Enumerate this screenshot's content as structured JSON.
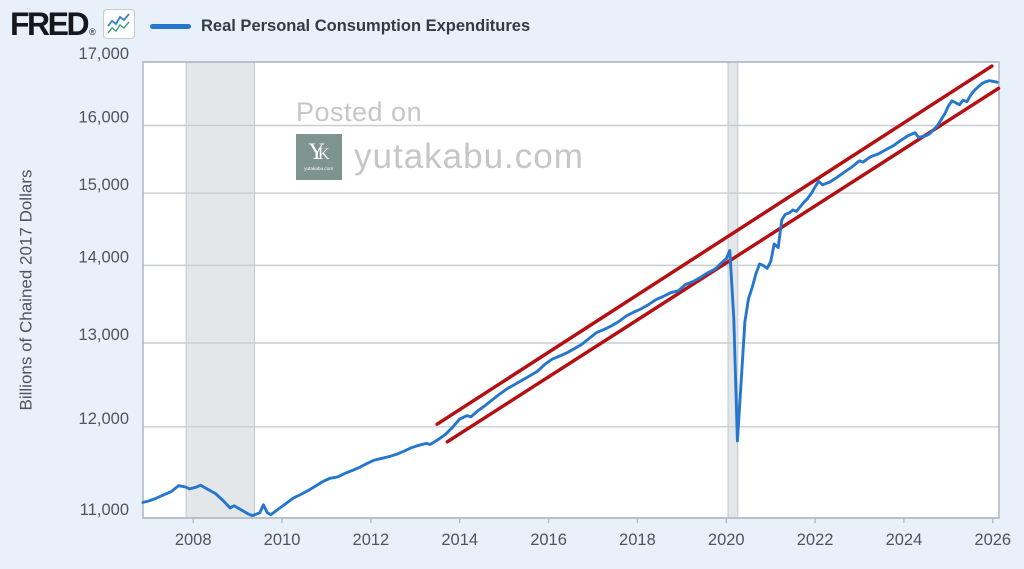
{
  "header": {
    "brand": "FRED",
    "brand_registered": "®",
    "legend_label": "Real Personal Consumption Expenditures"
  },
  "watermark": {
    "posted_on": "Posted on",
    "site": "yutakabu.com",
    "icon_monogram_y": "Y",
    "icon_monogram_k": "K",
    "icon_caption": "yutakabu.com"
  },
  "colors": {
    "page_bg": "#e8f0fa",
    "plot_bg": "#ffffff",
    "grid": "#c9ced4",
    "border": "#b3bac1",
    "recession": "#e4e7ea",
    "recession_edge": "#c2c8ce",
    "series_blue": "#2577ce",
    "trend_red": "#b40f12",
    "axis_text": "#4d565e",
    "legend_text": "#343b41",
    "watermark_gray": "#c6c6c6",
    "watermark_icon_bg": "#7e948e",
    "sparkline_blue": "#3d7fd0",
    "sparkline_green": "#3f9e7d"
  },
  "chart_data": {
    "type": "line",
    "title": "Real Personal Consumption Expenditures",
    "ylabel": "Billions of Chained 2017 Dollars",
    "y_scale": "log",
    "grid": true,
    "xlim": [
      2006.87,
      2026.14
    ],
    "ylim": [
      11000,
      17000
    ],
    "y_ticks": [
      {
        "v": 17000,
        "label": "17,000"
      },
      {
        "v": 16000,
        "label": "16,000"
      },
      {
        "v": 15000,
        "label": "15,000"
      },
      {
        "v": 14000,
        "label": "14,000"
      },
      {
        "v": 13000,
        "label": "13,000"
      },
      {
        "v": 12000,
        "label": "12,000"
      },
      {
        "v": 11000,
        "label": "11,000"
      }
    ],
    "x_ticks": [
      {
        "v": 2008,
        "label": "2008"
      },
      {
        "v": 2010,
        "label": "2010"
      },
      {
        "v": 2012,
        "label": "2012"
      },
      {
        "v": 2014,
        "label": "2014"
      },
      {
        "v": 2016,
        "label": "2016"
      },
      {
        "v": 2018,
        "label": "2018"
      },
      {
        "v": 2020,
        "label": "2020"
      },
      {
        "v": 2022,
        "label": "2022"
      },
      {
        "v": 2024,
        "label": "2024"
      },
      {
        "v": 2026,
        "label": "2026"
      }
    ],
    "recessions": [
      {
        "start": 2007.84,
        "end": 2009.38
      },
      {
        "start": 2020.04,
        "end": 2020.26
      }
    ],
    "trend_channel": {
      "name": "exponential trend channel (~2.7%/yr)",
      "lines": [
        {
          "x1": 2013.49,
          "y1": 12030,
          "x2": 2025.98,
          "y2": 16935
        },
        {
          "x1": 2013.72,
          "y1": 11830,
          "x2": 2026.13,
          "y2": 16578
        }
      ]
    },
    "series": {
      "name": "Real Personal Consumption Expenditures",
      "units": "Billions of Chained 2017 Dollars",
      "points": [
        [
          2006.87,
          11165
        ],
        [
          2007.0,
          11180
        ],
        [
          2007.17,
          11210
        ],
        [
          2007.33,
          11245
        ],
        [
          2007.5,
          11280
        ],
        [
          2007.67,
          11345
        ],
        [
          2007.83,
          11330
        ],
        [
          2007.92,
          11310
        ],
        [
          2008.08,
          11330
        ],
        [
          2008.17,
          11350
        ],
        [
          2008.33,
          11305
        ],
        [
          2008.5,
          11260
        ],
        [
          2008.67,
          11185
        ],
        [
          2008.83,
          11105
        ],
        [
          2008.92,
          11130
        ],
        [
          2009.08,
          11085
        ],
        [
          2009.25,
          11040
        ],
        [
          2009.33,
          11025
        ],
        [
          2009.5,
          11055
        ],
        [
          2009.58,
          11140
        ],
        [
          2009.67,
          11055
        ],
        [
          2009.75,
          11035
        ],
        [
          2009.92,
          11095
        ],
        [
          2010.08,
          11150
        ],
        [
          2010.25,
          11210
        ],
        [
          2010.42,
          11250
        ],
        [
          2010.58,
          11290
        ],
        [
          2010.75,
          11340
        ],
        [
          2010.92,
          11390
        ],
        [
          2011.08,
          11425
        ],
        [
          2011.25,
          11440
        ],
        [
          2011.42,
          11480
        ],
        [
          2011.58,
          11510
        ],
        [
          2011.75,
          11545
        ],
        [
          2011.92,
          11590
        ],
        [
          2012.08,
          11625
        ],
        [
          2012.25,
          11645
        ],
        [
          2012.42,
          11665
        ],
        [
          2012.58,
          11690
        ],
        [
          2012.75,
          11725
        ],
        [
          2012.92,
          11765
        ],
        [
          2013.08,
          11790
        ],
        [
          2013.25,
          11812
        ],
        [
          2013.33,
          11800
        ],
        [
          2013.5,
          11850
        ],
        [
          2013.67,
          11910
        ],
        [
          2013.83,
          11990
        ],
        [
          2014.0,
          12090
        ],
        [
          2014.17,
          12130
        ],
        [
          2014.25,
          12115
        ],
        [
          2014.42,
          12190
        ],
        [
          2014.58,
          12250
        ],
        [
          2014.75,
          12320
        ],
        [
          2014.92,
          12390
        ],
        [
          2015.08,
          12450
        ],
        [
          2015.25,
          12500
        ],
        [
          2015.42,
          12550
        ],
        [
          2015.58,
          12600
        ],
        [
          2015.75,
          12655
        ],
        [
          2015.92,
          12740
        ],
        [
          2016.08,
          12800
        ],
        [
          2016.25,
          12840
        ],
        [
          2016.42,
          12880
        ],
        [
          2016.58,
          12930
        ],
        [
          2016.75,
          12985
        ],
        [
          2016.92,
          13060
        ],
        [
          2017.08,
          13130
        ],
        [
          2017.25,
          13170
        ],
        [
          2017.42,
          13215
        ],
        [
          2017.58,
          13270
        ],
        [
          2017.75,
          13340
        ],
        [
          2017.92,
          13390
        ],
        [
          2018.08,
          13430
        ],
        [
          2018.25,
          13485
        ],
        [
          2018.42,
          13550
        ],
        [
          2018.58,
          13590
        ],
        [
          2018.75,
          13640
        ],
        [
          2018.92,
          13665
        ],
        [
          2019.08,
          13745
        ],
        [
          2019.25,
          13785
        ],
        [
          2019.42,
          13840
        ],
        [
          2019.58,
          13900
        ],
        [
          2019.75,
          13950
        ],
        [
          2019.92,
          14050
        ],
        [
          2020.0,
          14090
        ],
        [
          2020.08,
          14200
        ],
        [
          2020.17,
          13310
        ],
        [
          2020.25,
          11840
        ],
        [
          2020.33,
          12480
        ],
        [
          2020.42,
          13270
        ],
        [
          2020.5,
          13560
        ],
        [
          2020.58,
          13700
        ],
        [
          2020.67,
          13890
        ],
        [
          2020.75,
          14020
        ],
        [
          2020.83,
          14000
        ],
        [
          2020.92,
          13960
        ],
        [
          2021.0,
          14050
        ],
        [
          2021.08,
          14290
        ],
        [
          2021.17,
          14240
        ],
        [
          2021.25,
          14620
        ],
        [
          2021.33,
          14700
        ],
        [
          2021.42,
          14720
        ],
        [
          2021.5,
          14760
        ],
        [
          2021.58,
          14740
        ],
        [
          2021.67,
          14810
        ],
        [
          2021.75,
          14870
        ],
        [
          2021.83,
          14920
        ],
        [
          2021.92,
          15000
        ],
        [
          2022.0,
          15090
        ],
        [
          2022.08,
          15170
        ],
        [
          2022.17,
          15120
        ],
        [
          2022.33,
          15160
        ],
        [
          2022.5,
          15230
        ],
        [
          2022.67,
          15310
        ],
        [
          2022.83,
          15380
        ],
        [
          2023.0,
          15470
        ],
        [
          2023.08,
          15450
        ],
        [
          2023.25,
          15530
        ],
        [
          2023.42,
          15570
        ],
        [
          2023.58,
          15630
        ],
        [
          2023.75,
          15690
        ],
        [
          2023.92,
          15770
        ],
        [
          2024.08,
          15840
        ],
        [
          2024.25,
          15890
        ],
        [
          2024.33,
          15820
        ],
        [
          2024.5,
          15845
        ],
        [
          2024.58,
          15875
        ],
        [
          2024.75,
          15995
        ],
        [
          2024.92,
          16180
        ],
        [
          2025.0,
          16300
        ],
        [
          2025.08,
          16380
        ],
        [
          2025.17,
          16350
        ],
        [
          2025.25,
          16320
        ],
        [
          2025.33,
          16390
        ],
        [
          2025.42,
          16370
        ],
        [
          2025.5,
          16470
        ],
        [
          2025.58,
          16540
        ],
        [
          2025.67,
          16600
        ],
        [
          2025.75,
          16650
        ],
        [
          2025.83,
          16680
        ],
        [
          2025.92,
          16700
        ],
        [
          2026.0,
          16690
        ],
        [
          2026.1,
          16675
        ]
      ]
    }
  }
}
